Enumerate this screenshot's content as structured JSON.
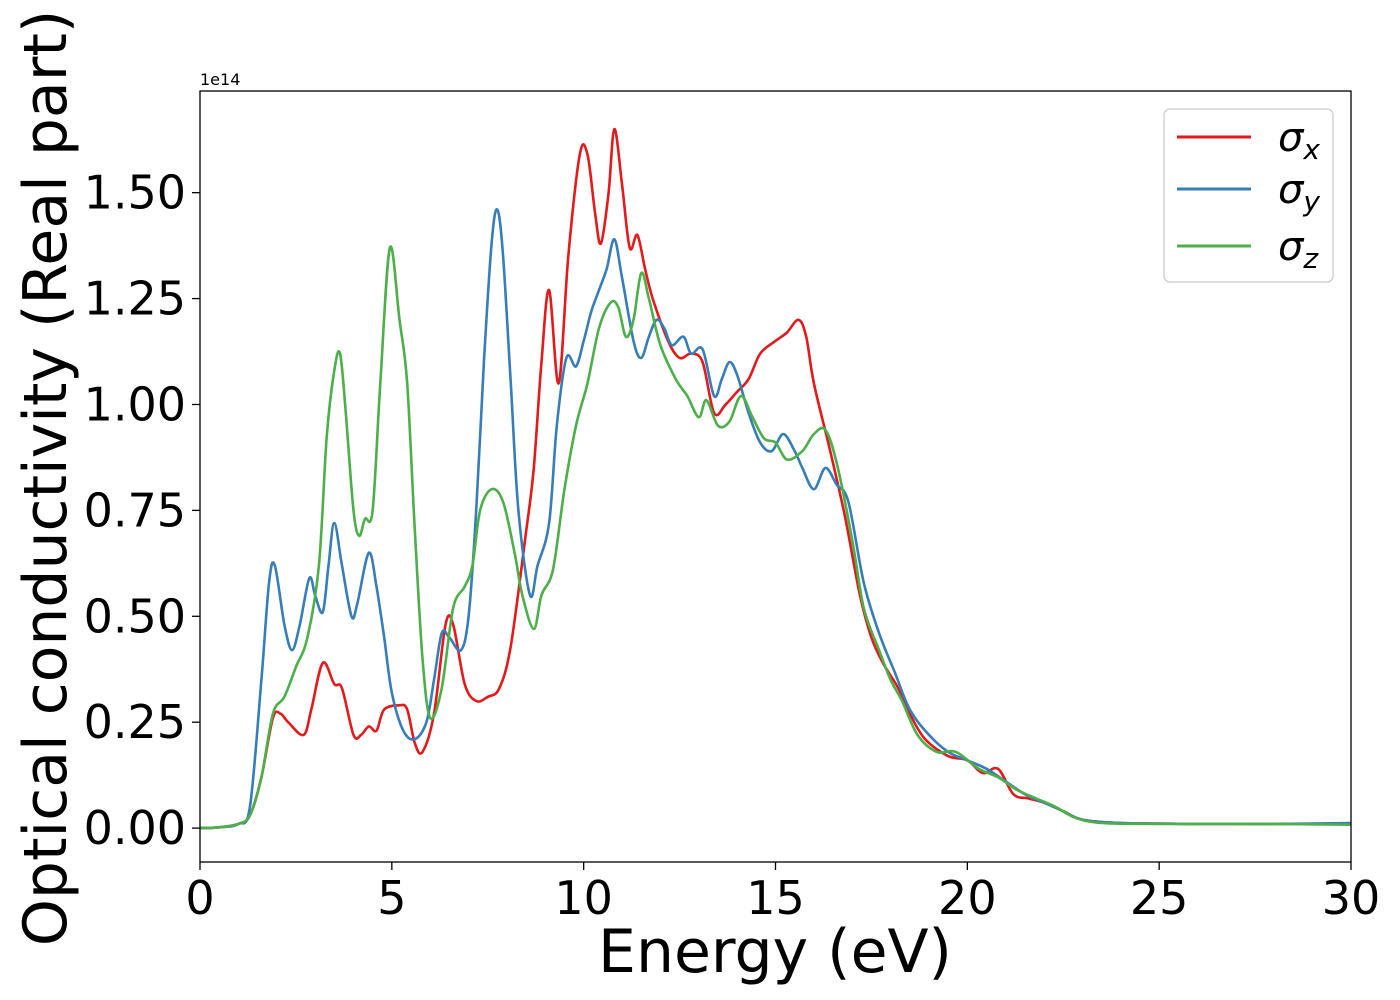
{
  "chart_data": {
    "type": "line",
    "xlabel": "Energy (eV)",
    "ylabel": "Optical conductivity (Real part)",
    "y_offset_label": "1e14",
    "xlim": [
      0,
      30
    ],
    "ylim": [
      -0.08,
      1.74
    ],
    "x_ticks": [
      0,
      5,
      10,
      15,
      20,
      25,
      30
    ],
    "x_tick_labels": [
      "0",
      "5",
      "10",
      "15",
      "20",
      "25",
      "30"
    ],
    "y_ticks": [
      0.0,
      0.25,
      0.5,
      0.75,
      1.0,
      1.25,
      1.5
    ],
    "y_tick_labels": [
      "0.00",
      "0.25",
      "0.50",
      "0.75",
      "1.00",
      "1.25",
      "1.50"
    ],
    "grid": false,
    "legend_position": "top-right",
    "legend": {
      "x": {
        "base": "σ",
        "sub": "x"
      },
      "y": {
        "base": "σ",
        "sub": "y"
      },
      "z": {
        "base": "σ",
        "sub": "z"
      }
    },
    "series": [
      {
        "key": "x",
        "color": "#e31a1c",
        "points": [
          [
            0,
            0
          ],
          [
            0.5,
            0.002
          ],
          [
            1,
            0.01
          ],
          [
            1.3,
            0.03
          ],
          [
            1.6,
            0.12
          ],
          [
            1.9,
            0.26
          ],
          [
            2.1,
            0.27
          ],
          [
            2.3,
            0.25
          ],
          [
            2.7,
            0.22
          ],
          [
            2.9,
            0.28
          ],
          [
            3.2,
            0.39
          ],
          [
            3.5,
            0.34
          ],
          [
            3.7,
            0.33
          ],
          [
            4.0,
            0.22
          ],
          [
            4.2,
            0.22
          ],
          [
            4.4,
            0.24
          ],
          [
            4.6,
            0.23
          ],
          [
            4.8,
            0.28
          ],
          [
            5.2,
            0.29
          ],
          [
            5.4,
            0.28
          ],
          [
            5.6,
            0.2
          ],
          [
            5.8,
            0.18
          ],
          [
            6.1,
            0.27
          ],
          [
            6.4,
            0.48
          ],
          [
            6.6,
            0.48
          ],
          [
            6.9,
            0.34
          ],
          [
            7.2,
            0.3
          ],
          [
            7.5,
            0.31
          ],
          [
            7.8,
            0.33
          ],
          [
            8.1,
            0.43
          ],
          [
            8.5,
            0.7
          ],
          [
            8.7,
            0.85
          ],
          [
            8.9,
            1.1
          ],
          [
            9.1,
            1.27
          ],
          [
            9.35,
            1.05
          ],
          [
            9.6,
            1.35
          ],
          [
            9.9,
            1.59
          ],
          [
            10.1,
            1.59
          ],
          [
            10.3,
            1.45
          ],
          [
            10.45,
            1.38
          ],
          [
            10.65,
            1.5
          ],
          [
            10.8,
            1.65
          ],
          [
            11.0,
            1.52
          ],
          [
            11.2,
            1.37
          ],
          [
            11.4,
            1.4
          ],
          [
            11.6,
            1.32
          ],
          [
            11.8,
            1.25
          ],
          [
            12.2,
            1.15
          ],
          [
            12.5,
            1.11
          ],
          [
            12.8,
            1.12
          ],
          [
            13.1,
            1.1
          ],
          [
            13.4,
            0.98
          ],
          [
            13.7,
            1.0
          ],
          [
            14.0,
            1.03
          ],
          [
            14.3,
            1.06
          ],
          [
            14.6,
            1.12
          ],
          [
            15.0,
            1.15
          ],
          [
            15.3,
            1.17
          ],
          [
            15.6,
            1.2
          ],
          [
            15.8,
            1.16
          ],
          [
            16.0,
            1.05
          ],
          [
            16.4,
            0.9
          ],
          [
            16.8,
            0.74
          ],
          [
            17.2,
            0.55
          ],
          [
            17.5,
            0.45
          ],
          [
            17.8,
            0.39
          ],
          [
            18.2,
            0.33
          ],
          [
            18.5,
            0.27
          ],
          [
            18.9,
            0.21
          ],
          [
            19.5,
            0.17
          ],
          [
            20.0,
            0.16
          ],
          [
            20.4,
            0.13
          ],
          [
            20.8,
            0.14
          ],
          [
            21.2,
            0.08
          ],
          [
            21.6,
            0.07
          ],
          [
            22.0,
            0.06
          ],
          [
            22.5,
            0.04
          ],
          [
            23.0,
            0.02
          ],
          [
            24.0,
            0.012
          ],
          [
            26.0,
            0.01
          ],
          [
            28.0,
            0.01
          ],
          [
            30.0,
            0.01
          ]
        ]
      },
      {
        "key": "y",
        "color": "#377eb8",
        "points": [
          [
            0,
            0
          ],
          [
            0.5,
            0.002
          ],
          [
            1,
            0.01
          ],
          [
            1.3,
            0.05
          ],
          [
            1.6,
            0.35
          ],
          [
            1.8,
            0.58
          ],
          [
            1.95,
            0.62
          ],
          [
            2.2,
            0.48
          ],
          [
            2.4,
            0.42
          ],
          [
            2.6,
            0.48
          ],
          [
            2.85,
            0.59
          ],
          [
            3.0,
            0.55
          ],
          [
            3.2,
            0.51
          ],
          [
            3.35,
            0.62
          ],
          [
            3.5,
            0.72
          ],
          [
            3.7,
            0.62
          ],
          [
            3.95,
            0.5
          ],
          [
            4.1,
            0.53
          ],
          [
            4.4,
            0.65
          ],
          [
            4.6,
            0.57
          ],
          [
            4.8,
            0.45
          ],
          [
            5.0,
            0.32
          ],
          [
            5.3,
            0.23
          ],
          [
            5.6,
            0.21
          ],
          [
            5.9,
            0.25
          ],
          [
            6.1,
            0.35
          ],
          [
            6.3,
            0.46
          ],
          [
            6.5,
            0.45
          ],
          [
            6.8,
            0.42
          ],
          [
            7.0,
            0.5
          ],
          [
            7.2,
            0.75
          ],
          [
            7.4,
            1.1
          ],
          [
            7.6,
            1.38
          ],
          [
            7.75,
            1.46
          ],
          [
            7.9,
            1.35
          ],
          [
            8.1,
            1.05
          ],
          [
            8.3,
            0.75
          ],
          [
            8.6,
            0.55
          ],
          [
            8.8,
            0.62
          ],
          [
            9.1,
            0.72
          ],
          [
            9.3,
            0.95
          ],
          [
            9.55,
            1.11
          ],
          [
            9.8,
            1.09
          ],
          [
            10.0,
            1.15
          ],
          [
            10.2,
            1.22
          ],
          [
            10.4,
            1.27
          ],
          [
            10.6,
            1.32
          ],
          [
            10.8,
            1.39
          ],
          [
            11.0,
            1.3
          ],
          [
            11.3,
            1.15
          ],
          [
            11.5,
            1.11
          ],
          [
            11.7,
            1.16
          ],
          [
            11.9,
            1.2
          ],
          [
            12.1,
            1.18
          ],
          [
            12.3,
            1.14
          ],
          [
            12.6,
            1.16
          ],
          [
            12.8,
            1.12
          ],
          [
            13.1,
            1.13
          ],
          [
            13.4,
            1.02
          ],
          [
            13.6,
            1.06
          ],
          [
            13.8,
            1.1
          ],
          [
            14.0,
            1.07
          ],
          [
            14.3,
            0.98
          ],
          [
            14.6,
            0.91
          ],
          [
            14.9,
            0.89
          ],
          [
            15.2,
            0.93
          ],
          [
            15.5,
            0.89
          ],
          [
            15.7,
            0.85
          ],
          [
            16.0,
            0.8
          ],
          [
            16.3,
            0.85
          ],
          [
            16.6,
            0.81
          ],
          [
            16.9,
            0.77
          ],
          [
            17.3,
            0.58
          ],
          [
            17.7,
            0.46
          ],
          [
            18.1,
            0.37
          ],
          [
            18.5,
            0.28
          ],
          [
            19.0,
            0.22
          ],
          [
            19.5,
            0.18
          ],
          [
            20.0,
            0.16
          ],
          [
            20.5,
            0.14
          ],
          [
            21.0,
            0.11
          ],
          [
            21.5,
            0.08
          ],
          [
            22.0,
            0.06
          ],
          [
            22.5,
            0.04
          ],
          [
            23.0,
            0.02
          ],
          [
            24.0,
            0.012
          ],
          [
            26.0,
            0.01
          ],
          [
            28.0,
            0.01
          ],
          [
            30.0,
            0.012
          ]
        ]
      },
      {
        "key": "z",
        "color": "#4daf4a",
        "points": [
          [
            0,
            0
          ],
          [
            0.5,
            0.002
          ],
          [
            1,
            0.01
          ],
          [
            1.3,
            0.03
          ],
          [
            1.6,
            0.12
          ],
          [
            1.9,
            0.27
          ],
          [
            2.2,
            0.31
          ],
          [
            2.5,
            0.38
          ],
          [
            2.8,
            0.45
          ],
          [
            3.1,
            0.62
          ],
          [
            3.3,
            0.92
          ],
          [
            3.5,
            1.08
          ],
          [
            3.65,
            1.12
          ],
          [
            3.8,
            0.98
          ],
          [
            4.0,
            0.75
          ],
          [
            4.15,
            0.69
          ],
          [
            4.3,
            0.73
          ],
          [
            4.5,
            0.75
          ],
          [
            4.7,
            1.05
          ],
          [
            4.95,
            1.37
          ],
          [
            5.2,
            1.2
          ],
          [
            5.4,
            1.05
          ],
          [
            5.6,
            0.7
          ],
          [
            5.8,
            0.4
          ],
          [
            6.0,
            0.26
          ],
          [
            6.3,
            0.33
          ],
          [
            6.6,
            0.52
          ],
          [
            6.9,
            0.57
          ],
          [
            7.1,
            0.62
          ],
          [
            7.3,
            0.75
          ],
          [
            7.6,
            0.8
          ],
          [
            7.9,
            0.77
          ],
          [
            8.2,
            0.65
          ],
          [
            8.4,
            0.55
          ],
          [
            8.7,
            0.47
          ],
          [
            8.9,
            0.55
          ],
          [
            9.2,
            0.61
          ],
          [
            9.5,
            0.8
          ],
          [
            9.8,
            0.95
          ],
          [
            10.1,
            1.05
          ],
          [
            10.4,
            1.18
          ],
          [
            10.7,
            1.24
          ],
          [
            10.9,
            1.23
          ],
          [
            11.1,
            1.16
          ],
          [
            11.3,
            1.2
          ],
          [
            11.5,
            1.31
          ],
          [
            11.7,
            1.25
          ],
          [
            12.0,
            1.14
          ],
          [
            12.4,
            1.06
          ],
          [
            12.7,
            1.02
          ],
          [
            13.0,
            0.97
          ],
          [
            13.2,
            1.01
          ],
          [
            13.5,
            0.95
          ],
          [
            13.8,
            0.96
          ],
          [
            14.1,
            1.02
          ],
          [
            14.4,
            0.97
          ],
          [
            14.7,
            0.92
          ],
          [
            15.0,
            0.91
          ],
          [
            15.3,
            0.87
          ],
          [
            15.7,
            0.89
          ],
          [
            16.0,
            0.93
          ],
          [
            16.3,
            0.94
          ],
          [
            16.6,
            0.86
          ],
          [
            17.0,
            0.68
          ],
          [
            17.3,
            0.52
          ],
          [
            17.7,
            0.42
          ],
          [
            18.0,
            0.35
          ],
          [
            18.3,
            0.3
          ],
          [
            18.7,
            0.22
          ],
          [
            19.2,
            0.18
          ],
          [
            19.7,
            0.18
          ],
          [
            20.3,
            0.14
          ],
          [
            20.8,
            0.12
          ],
          [
            21.3,
            0.09
          ],
          [
            21.8,
            0.07
          ],
          [
            22.3,
            0.05
          ],
          [
            22.8,
            0.025
          ],
          [
            23.5,
            0.012
          ],
          [
            25.0,
            0.01
          ],
          [
            28.0,
            0.01
          ],
          [
            30.0,
            0.008
          ]
        ]
      }
    ]
  }
}
